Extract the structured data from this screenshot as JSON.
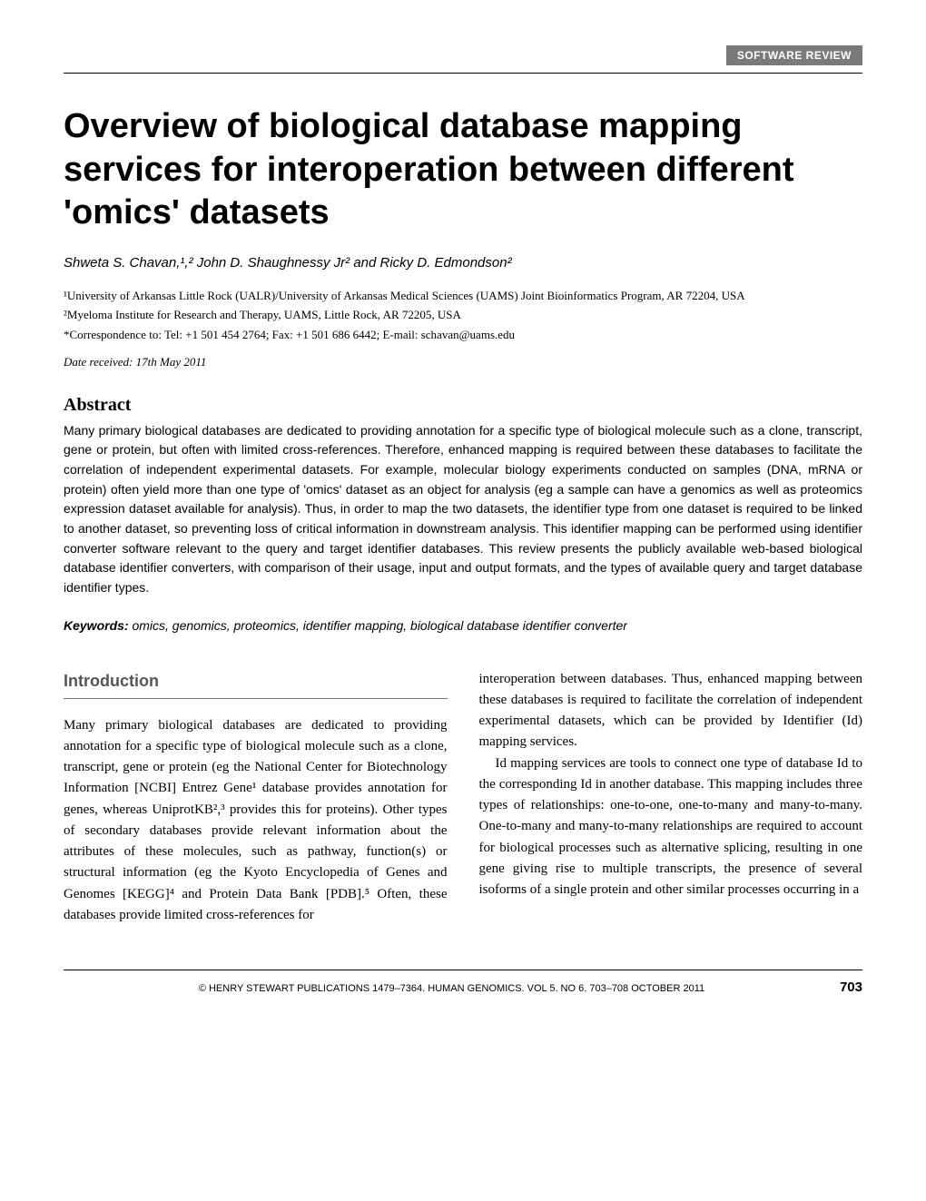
{
  "header": {
    "review_tag": "SOFTWARE REVIEW"
  },
  "title": "Overview of biological database mapping services for interoperation between different 'omics' datasets",
  "authors": "Shweta S. Chavan,¹,² John D. Shaughnessy Jr² and Ricky D. Edmondson²",
  "affiliations": {
    "line1": "¹University of Arkansas Little Rock (UALR)/University of Arkansas Medical Sciences (UAMS) Joint Bioinformatics Program, AR 72204, USA",
    "line2": "²Myeloma Institute for Research and Therapy, UAMS, Little Rock, AR 72205, USA"
  },
  "correspondence": "*Correspondence to: Tel: +1 501 454 2764; Fax: +1 501 686 6442; E-mail: schavan@uams.edu",
  "date": "Date received: 17th May 2011",
  "abstract": {
    "heading": "Abstract",
    "text": "Many primary biological databases are dedicated to providing annotation for a specific type of biological molecule such as a clone, transcript, gene or protein, but often with limited cross-references. Therefore, enhanced mapping is required between these databases to facilitate the correlation of independent experimental datasets. For example, molecular biology experiments conducted on samples (DNA, mRNA or protein) often yield more than one type of 'omics' dataset as an object for analysis (eg a sample can have a genomics as well as proteomics expression dataset available for analysis). Thus, in order to map the two datasets, the identifier type from one dataset is required to be linked to another dataset, so preventing loss of critical information in downstream analysis. This identifier mapping can be performed using identifier converter software relevant to the query and target identifier databases. This review presents the publicly available web-based biological database identifier converters, with comparison of their usage, input and output formats, and the types of available query and target database identifier types."
  },
  "keywords": {
    "label": "Keywords:",
    "text": " omics, genomics, proteomics, identifier mapping, biological database identifier converter"
  },
  "introduction": {
    "heading": "Introduction",
    "col1_para1": "Many primary biological databases are dedicated to providing annotation for a specific type of biological molecule such as a clone, transcript, gene or protein (eg the National Center for Biotechnology Information [NCBI] Entrez Gene¹ database provides annotation for genes, whereas UniprotKB²,³ provides this for proteins). Other types of secondary databases provide relevant information about the attributes of these molecules, such as pathway, function(s) or structural information (eg the Kyoto Encyclopedia of Genes and Genomes [KEGG]⁴ and Protein Data Bank [PDB].⁵ Often, these databases provide limited cross-references for",
    "col2_para1": "interoperation between databases. Thus, enhanced mapping between these databases is required to facilitate the correlation of independent experimental datasets, which can be provided by Identifier (Id) mapping services.",
    "col2_para2": "Id mapping services are tools to connect one type of database Id to the corresponding Id in another database. This mapping includes three types of relationships: one-to-one, one-to-many and many-to-many. One-to-many and many-to-many relationships are required to account for biological processes such as alternative splicing, resulting in one gene giving rise to multiple transcripts, the presence of several isoforms of a single protein and other similar processes occurring in a"
  },
  "footer": {
    "text": "© HENRY STEWART PUBLICATIONS 1479–7364. HUMAN GENOMICS. VOL 5. NO 6. 703–708 OCTOBER 2011",
    "page": "703"
  }
}
